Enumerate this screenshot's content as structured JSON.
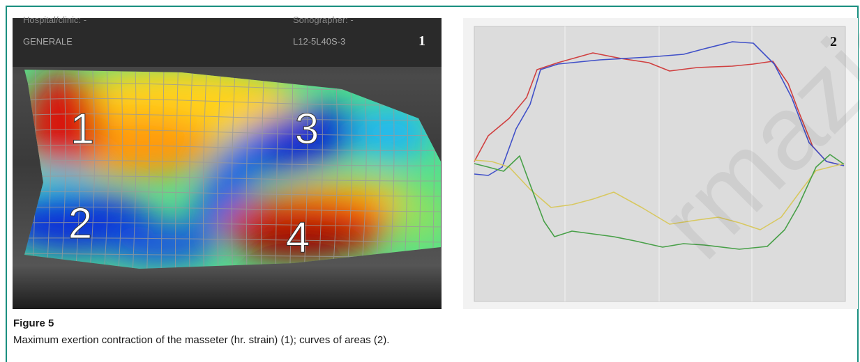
{
  "figure": {
    "panel1": {
      "hospital": "Hospital/clinic: -",
      "department": "GENERALE",
      "sonographer": "Sonographer: -",
      "probe": "L12-5L40S-3",
      "panel_number": "1",
      "regions": [
        "1",
        "2",
        "3",
        "4"
      ]
    },
    "panel2": {
      "panel_number": "2"
    },
    "label": "Figure 5",
    "caption": "Maximum exertion contraction of the masseter (hr. strain) (1); curves of areas (2).",
    "watermark": "rmazio"
  }
}
